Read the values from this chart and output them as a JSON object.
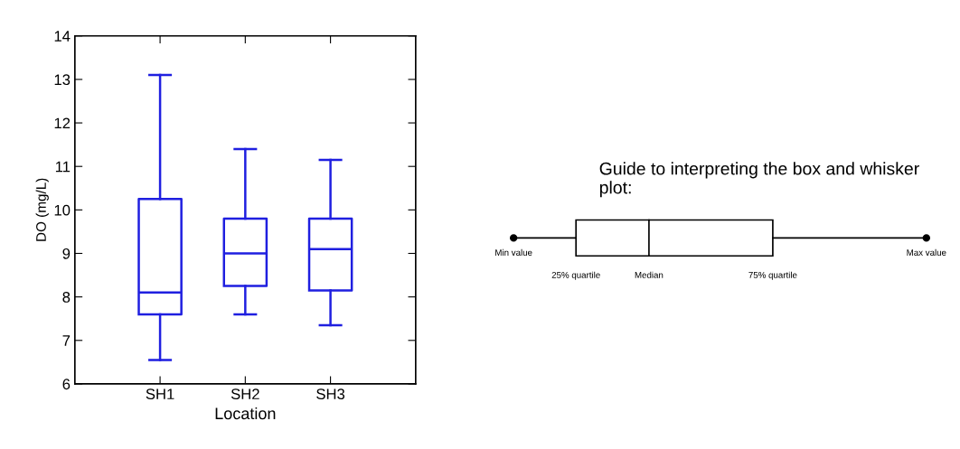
{
  "chart_data": {
    "type": "box",
    "xlabel": "Location",
    "ylabel": "DO (mg/L)",
    "categories": [
      "SH1",
      "SH2",
      "SH3"
    ],
    "series": [
      {
        "color": "#1f1fe0",
        "boxes": [
          {
            "low": 6.55,
            "q1": 7.6,
            "median": 8.1,
            "q3": 10.25,
            "high": 13.1
          },
          {
            "low": 7.6,
            "q1": 8.25,
            "median": 9.0,
            "q3": 9.8,
            "high": 11.4
          },
          {
            "low": 7.35,
            "q1": 8.15,
            "median": 9.1,
            "q3": 9.8,
            "high": 11.15
          }
        ]
      }
    ],
    "ylim": [
      6,
      14
    ],
    "yticks": [
      6,
      7,
      8,
      9,
      10,
      11,
      12,
      13,
      14
    ],
    "grid": false,
    "annotations": [
      "Guide to interpreting the box and whisker plot:",
      "Min value",
      "25% quartile",
      "Median",
      "75% quartile",
      "Max value"
    ]
  }
}
